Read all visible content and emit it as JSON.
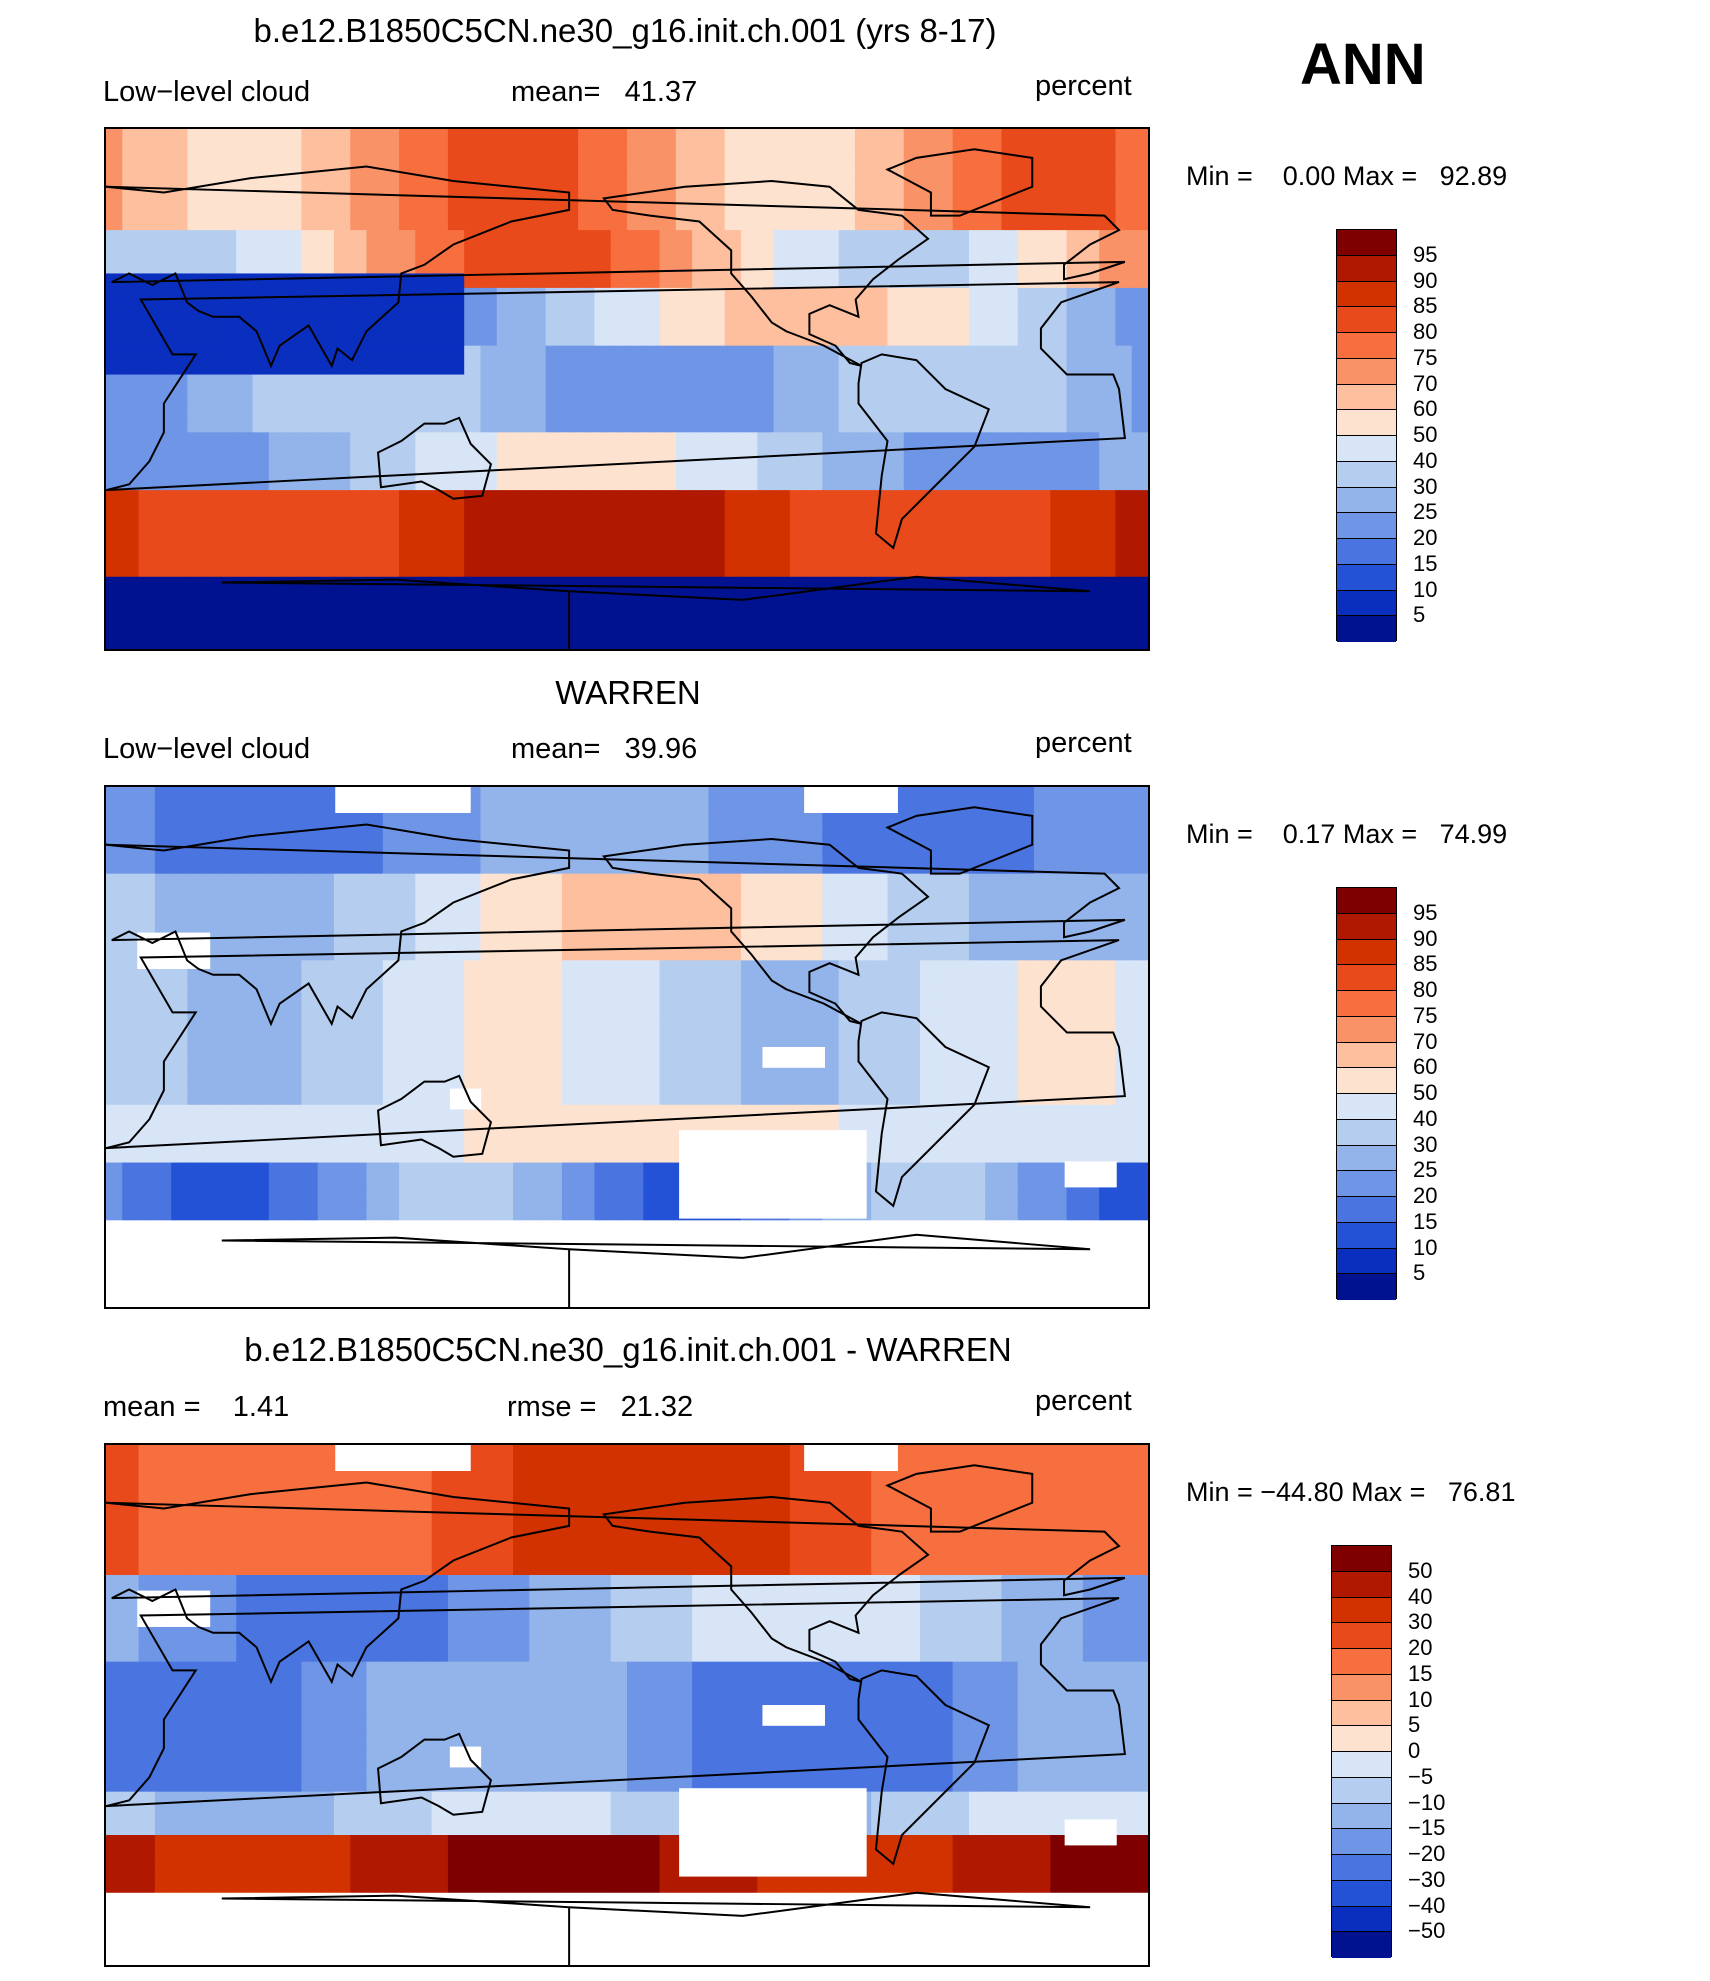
{
  "annual_label": "ANN",
  "panels": [
    {
      "title": "b.e12.B1850C5CN.ne30_g16.init.ch.001 (yrs 8-17)",
      "left_label": "Low−level cloud",
      "mid_label": "mean=   41.37",
      "units": "percent",
      "minmax": "Min =    0.00 Max =   92.89",
      "colorbar_labels": [
        "95",
        "90",
        "85",
        "80",
        "75",
        "70",
        "60",
        "50",
        "40",
        "30",
        "25",
        "20",
        "15",
        "10",
        "5"
      ],
      "mean_value": 41.37,
      "min_value": 0.0,
      "max_value": 92.89
    },
    {
      "title": "WARREN",
      "left_label": "Low−level cloud",
      "mid_label": "mean=   39.96",
      "units": "percent",
      "minmax": "Min =    0.17 Max =   74.99",
      "colorbar_labels": [
        "95",
        "90",
        "85",
        "80",
        "75",
        "70",
        "60",
        "50",
        "40",
        "30",
        "25",
        "20",
        "15",
        "10",
        "5"
      ],
      "mean_value": 39.96,
      "min_value": 0.17,
      "max_value": 74.99
    },
    {
      "title": "b.e12.B1850C5CN.ne30_g16.init.ch.001 - WARREN",
      "left_label": "mean =    1.41",
      "mid_label": "rmse =   21.32",
      "units": "percent",
      "minmax": "Min = −44.80 Max =   76.81",
      "colorbar_labels": [
        "50",
        "40",
        "30",
        "20",
        "15",
        "10",
        "5",
        "0",
        "−5",
        "−10",
        "−15",
        "−20",
        "−30",
        "−40",
        "−50"
      ],
      "mean_value": 1.41,
      "rmse_value": 21.32,
      "min_value": -44.8,
      "max_value": 76.81
    }
  ],
  "colors": {
    "scale16": [
      "#7f0000",
      "#b01800",
      "#d13200",
      "#e84a1c",
      "#f76f3e",
      "#fa9268",
      "#fdbf9e",
      "#fde3cf",
      "#d7e5f7",
      "#b5ceef",
      "#93b4ea",
      "#6f95e6",
      "#4a74df",
      "#2352d6",
      "#0a2fbf",
      "#00128f"
    ],
    "land_outline": "#000000",
    "missing": "#ffffff"
  }
}
